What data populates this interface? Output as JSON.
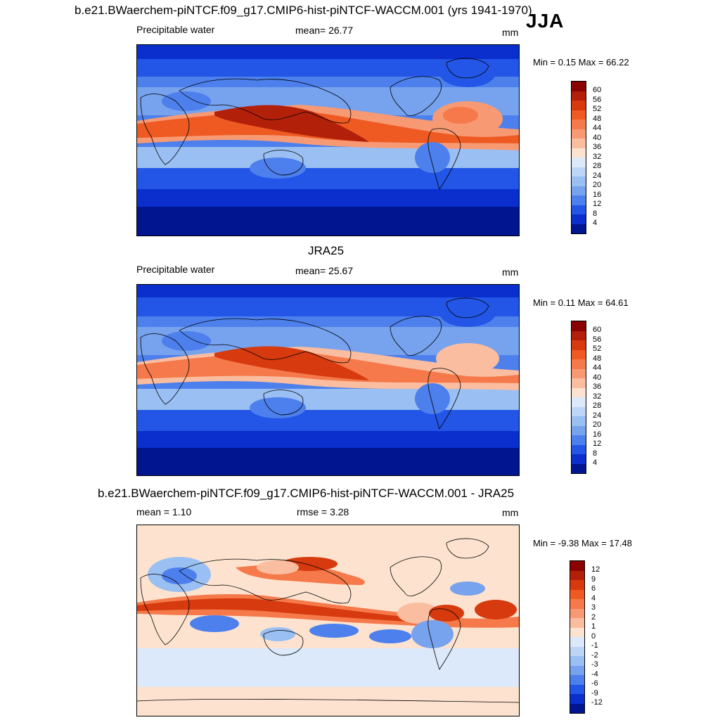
{
  "season": "JJA",
  "panels": [
    {
      "title": "b.e21.BWaerchem-piNTCF.f09_g17.CMIP6-hist-piNTCF-WACCM.001 (yrs 1941-1970)",
      "left_label": "Precipitable water",
      "center_label": "mean=  26.77",
      "units": "mm",
      "minmax": "Min =   0.15 Max =  66.22",
      "colorbar": {
        "labels": [
          "60",
          "56",
          "52",
          "48",
          "44",
          "40",
          "36",
          "32",
          "28",
          "24",
          "20",
          "16",
          "12",
          "8",
          "4"
        ],
        "colors": [
          "#8b0000",
          "#b3200a",
          "#d63a0e",
          "#ee5a22",
          "#f5794a",
          "#f79a74",
          "#fabda0",
          "#fde3cf",
          "#dce9fb",
          "#bdd6f7",
          "#9abff2",
          "#77a2ee",
          "#4d80ec",
          "#2356e6",
          "#0a2fcc",
          "#00158f"
        ]
      }
    },
    {
      "title": "JRA25",
      "left_label": "Precipitable water",
      "center_label": "mean=  25.67",
      "units": "mm",
      "minmax": "Min =   0.11 Max =  64.61",
      "colorbar": {
        "labels": [
          "60",
          "56",
          "52",
          "48",
          "44",
          "40",
          "36",
          "32",
          "28",
          "24",
          "20",
          "16",
          "12",
          "8",
          "4"
        ],
        "colors": [
          "#8b0000",
          "#b3200a",
          "#d63a0e",
          "#ee5a22",
          "#f5794a",
          "#f79a74",
          "#fabda0",
          "#fde3cf",
          "#dce9fb",
          "#bdd6f7",
          "#9abff2",
          "#77a2ee",
          "#4d80ec",
          "#2356e6",
          "#0a2fcc",
          "#00158f"
        ]
      }
    },
    {
      "title": "b.e21.BWaerchem-piNTCF.f09_g17.CMIP6-hist-piNTCF-WACCM.001 - JRA25",
      "left_label": "mean =   1.10",
      "center_label": "rmse =   3.28",
      "units": "mm",
      "minmax": "Min =  -9.38 Max =  17.48",
      "colorbar": {
        "labels": [
          "12",
          "9",
          "6",
          "4",
          "3",
          "2",
          "1",
          "0",
          "-1",
          "-2",
          "-3",
          "-4",
          "-6",
          "-9",
          "-12"
        ],
        "colors": [
          "#8b0000",
          "#b3200a",
          "#d63a0e",
          "#ee5a22",
          "#f5794a",
          "#f79a74",
          "#fabda0",
          "#fde3cf",
          "#dce9fb",
          "#bdd6f7",
          "#9abff2",
          "#77a2ee",
          "#4d80ec",
          "#2356e6",
          "#0a2fcc",
          "#00158f"
        ]
      }
    }
  ]
}
